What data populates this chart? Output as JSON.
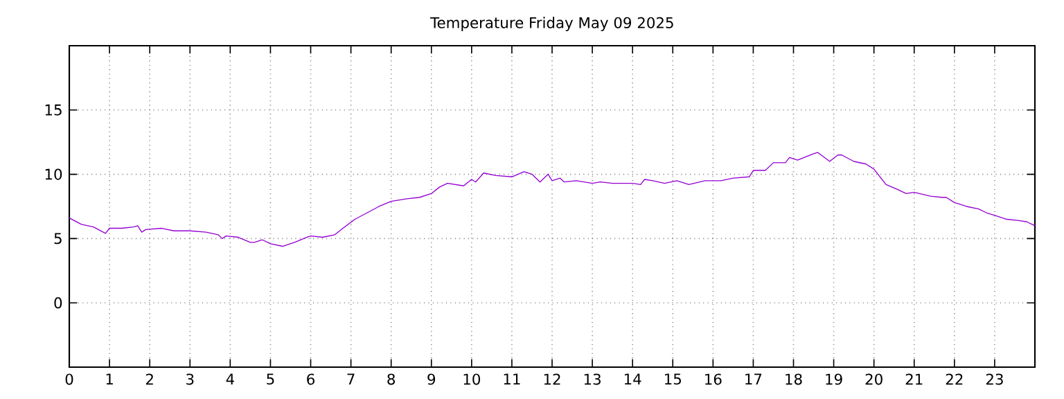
{
  "chart_data": {
    "type": "line",
    "title": "Temperature Friday May 09 2025",
    "x": [
      0,
      0.3,
      0.6,
      0.9,
      1.0,
      1.3,
      1.6,
      1.7,
      1.8,
      1.9,
      2.3,
      2.6,
      3.0,
      3.4,
      3.7,
      3.8,
      3.9,
      4.2,
      4.5,
      4.6,
      4.8,
      5.0,
      5.3,
      5.6,
      5.9,
      6.0,
      6.3,
      6.6,
      6.8,
      7.1,
      7.4,
      7.7,
      8.0,
      8.4,
      8.7,
      9.0,
      9.2,
      9.4,
      9.8,
      10.0,
      10.1,
      10.3,
      10.6,
      11.0,
      11.3,
      11.5,
      11.7,
      11.9,
      12.0,
      12.2,
      12.3,
      12.6,
      13.0,
      13.2,
      13.5,
      14.0,
      14.2,
      14.3,
      14.5,
      14.8,
      15.1,
      15.4,
      15.8,
      16.2,
      16.5,
      16.9,
      17.0,
      17.3,
      17.5,
      17.8,
      17.9,
      18.1,
      18.5,
      18.6,
      18.9,
      19.1,
      19.2,
      19.5,
      19.8,
      20.0,
      20.3,
      20.6,
      20.8,
      21.0,
      21.4,
      21.7,
      21.8,
      22.0,
      22.3,
      22.6,
      22.8,
      23.0,
      23.3,
      23.6,
      23.8,
      24
    ],
    "values": [
      6.6,
      6.1,
      5.9,
      5.4,
      5.8,
      5.8,
      5.9,
      6.0,
      5.5,
      5.7,
      5.8,
      5.6,
      5.6,
      5.5,
      5.3,
      5.0,
      5.2,
      5.1,
      4.7,
      4.7,
      4.9,
      4.6,
      4.4,
      4.7,
      5.1,
      5.2,
      5.1,
      5.3,
      5.8,
      6.5,
      7.0,
      7.5,
      7.9,
      8.1,
      8.2,
      8.5,
      9.0,
      9.3,
      9.1,
      9.6,
      9.4,
      10.1,
      9.9,
      9.8,
      10.2,
      10.0,
      9.4,
      10.0,
      9.5,
      9.7,
      9.4,
      9.5,
      9.3,
      9.4,
      9.3,
      9.3,
      9.2,
      9.6,
      9.5,
      9.3,
      9.5,
      9.2,
      9.5,
      9.5,
      9.7,
      9.8,
      10.3,
      10.3,
      10.9,
      10.9,
      11.3,
      11.1,
      11.6,
      11.7,
      11.0,
      11.5,
      11.5,
      11.0,
      10.8,
      10.4,
      9.2,
      8.8,
      8.5,
      8.6,
      8.3,
      8.2,
      8.2,
      7.8,
      7.5,
      7.3,
      7.0,
      6.8,
      6.5,
      6.4,
      6.3,
      6.0
    ],
    "color": "#9400d3",
    "xlim": [
      0,
      24
    ],
    "xticks": [
      0,
      1,
      2,
      3,
      4,
      5,
      6,
      7,
      8,
      9,
      10,
      11,
      12,
      13,
      14,
      15,
      16,
      17,
      18,
      19,
      20,
      21,
      22,
      23
    ],
    "ylim": [
      -5,
      20
    ],
    "yticks": [
      0,
      5,
      10,
      15
    ],
    "grid": true,
    "marker": "none",
    "line_style": "solid"
  }
}
